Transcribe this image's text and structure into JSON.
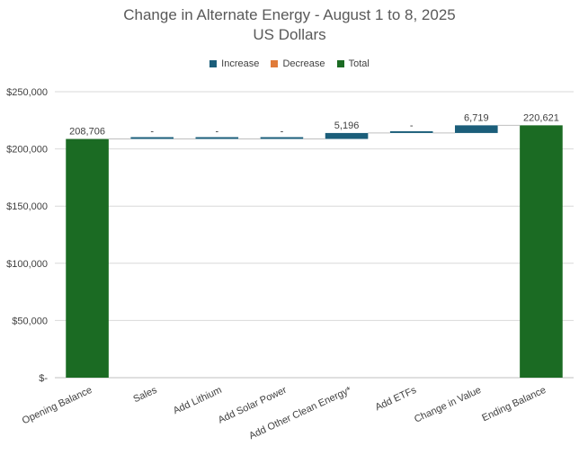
{
  "chart_data": {
    "type": "waterfall",
    "title": "Change in Alternate Energy - August 1 to 8, 2025",
    "subtitle": "US Dollars",
    "categories": [
      "Opening Balance",
      "Sales",
      "Add Lithium",
      "Add Solar Power",
      "Add  Other Clean Energy*",
      "Add ETFs",
      "Change in Value",
      "Ending Balance"
    ],
    "values": [
      208706,
      0,
      0,
      0,
      5196,
      0,
      6719,
      220621
    ],
    "kinds": [
      "total",
      "increase",
      "increase",
      "increase",
      "increase",
      "increase",
      "increase",
      "total"
    ],
    "data_labels": [
      "208,706",
      "-",
      "-",
      "-",
      "5,196",
      "-",
      "6,719",
      "220,621"
    ],
    "ylim": [
      0,
      250000
    ],
    "yticks": [
      0,
      50000,
      100000,
      150000,
      200000,
      250000
    ],
    "ytick_labels": [
      "$-",
      "$50,000",
      "$100,000",
      "$150,000",
      "$200,000",
      "$250,000"
    ],
    "legend": [
      {
        "name": "Increase",
        "color": "#1b5e7a"
      },
      {
        "name": "Decrease",
        "color": "#e07b39"
      },
      {
        "name": "Total",
        "color": "#1b6b23"
      }
    ],
    "legend_position": "top",
    "grid": true
  }
}
